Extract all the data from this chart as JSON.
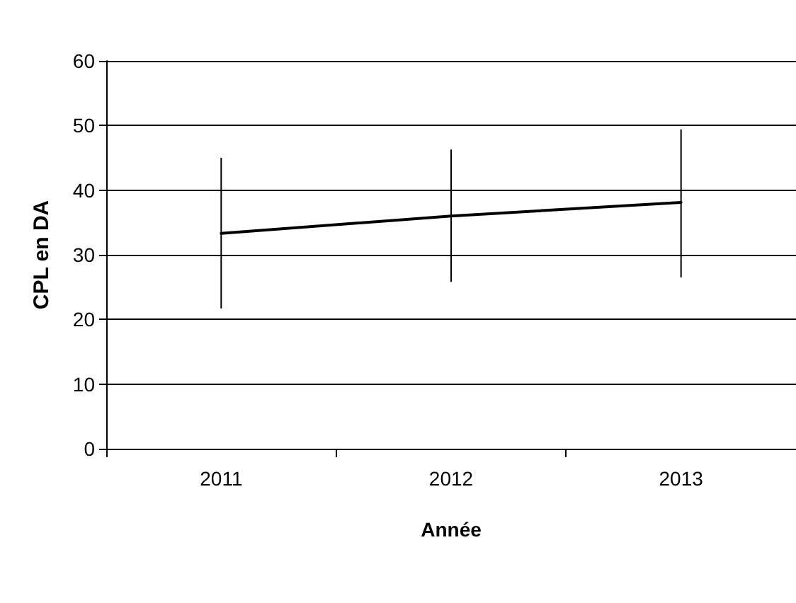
{
  "chart_data": {
    "type": "line",
    "xlabel": "Année",
    "ylabel": "CPL en DA",
    "categories": [
      "2011",
      "2012",
      "2013"
    ],
    "series": [
      {
        "color": "#000000",
        "values": [
          33.3,
          36.0,
          38.1
        ],
        "errors": [
          [
            21.7,
            45.0
          ],
          [
            25.8,
            46.3
          ],
          [
            26.5,
            49.4
          ]
        ]
      }
    ],
    "ylim": [
      0,
      60
    ],
    "yticks": [
      0,
      10,
      20,
      30,
      40,
      50,
      60
    ],
    "grid": "y",
    "marker": "none",
    "line_style": "solid"
  }
}
